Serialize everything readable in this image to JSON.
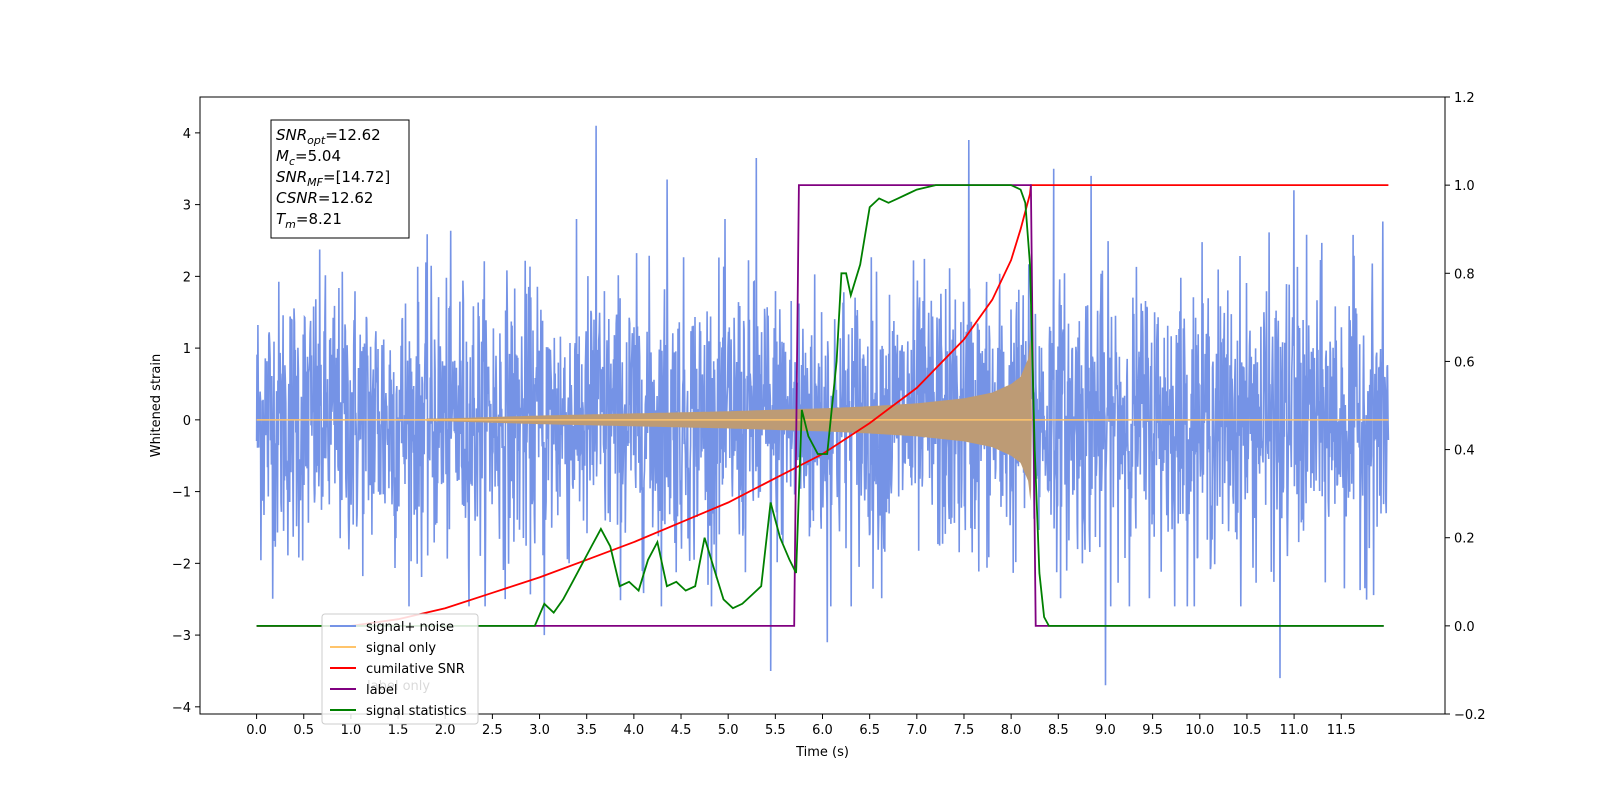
{
  "chart_data": {
    "type": "line",
    "xlabel": "Time (s)",
    "ylabel_left": "Whitened strain",
    "ylabel_right": "",
    "xlim": [
      -0.6,
      12.6
    ],
    "ylim_left": [
      -4.1,
      4.5
    ],
    "ylim_right": [
      -0.2,
      1.2
    ],
    "x_ticks": [
      "0.0",
      "0.5",
      "1.0",
      "1.5",
      "2.0",
      "2.5",
      "3.0",
      "3.5",
      "4.0",
      "4.5",
      "5.0",
      "5.5",
      "6.0",
      "6.5",
      "7.0",
      "7.5",
      "8.0",
      "8.5",
      "9.0",
      "9.5",
      "10.0",
      "10.5",
      "11.0",
      "11.5"
    ],
    "y_ticks_left": [
      "−4",
      "−3",
      "−2",
      "−1",
      "0",
      "1",
      "2",
      "3",
      "4"
    ],
    "y_ticks_right": [
      "−0.2",
      "0.0",
      "0.2",
      "0.4",
      "0.6",
      "0.8",
      "1.0",
      "1.2"
    ],
    "grid": false,
    "legend_position": "lower-left",
    "legend": [
      {
        "name": "signal+ noise",
        "color": "#7593e6"
      },
      {
        "name": "signal only",
        "color": "#ffc46b"
      },
      {
        "name": "cumilative SNR",
        "color": "#ff0000"
      },
      {
        "name": "label",
        "color": "#800080"
      },
      {
        "name": "signal statistics",
        "color": "#008000"
      }
    ],
    "hidden_legend_text": "label only",
    "stats_box": [
      {
        "main": "SNR",
        "sub": "opt",
        "value": "=12.62"
      },
      {
        "main": "M",
        "sub": "c",
        "value": "=5.04"
      },
      {
        "main": "SNR",
        "sub": "MF",
        "value": "=[14.72]"
      },
      {
        "main": "CSNR",
        "sub": "",
        "value": "=12.62"
      },
      {
        "main": "T",
        "sub": "m",
        "value": "=8.21"
      }
    ],
    "series": [
      {
        "name": "signal+ noise",
        "axis": "left",
        "color": "#7593e6",
        "x_range": [
          0.0,
          12.0
        ],
        "noise_envelope": [
          -2.0,
          2.1
        ],
        "spikes": [
          {
            "x": 3.6,
            "y": 4.1
          },
          {
            "x": 3.05,
            "y": -3.0
          },
          {
            "x": 5.45,
            "y": -3.5
          },
          {
            "x": 7.55,
            "y": 3.9
          },
          {
            "x": 8.85,
            "y": 3.4
          },
          {
            "x": 9.0,
            "y": -3.7
          },
          {
            "x": 10.85,
            "y": -3.6
          },
          {
            "x": 4.35,
            "y": 3.35
          },
          {
            "x": 5.3,
            "y": 3.65
          },
          {
            "x": 8.45,
            "y": 3.5
          },
          {
            "x": 6.05,
            "y": -3.1
          },
          {
            "x": 11.0,
            "y": 3.2
          }
        ]
      },
      {
        "name": "signal only",
        "axis": "left",
        "color": "#ffc46b",
        "fill_color": "#bd9b75",
        "envelope": {
          "x": [
            0.0,
            2.0,
            3.0,
            4.0,
            5.0,
            5.7,
            6.0,
            6.5,
            7.0,
            7.5,
            7.8,
            8.0,
            8.1,
            8.18,
            8.21,
            8.22,
            12.0
          ],
          "amp": [
            0.0,
            0.02,
            0.06,
            0.09,
            0.12,
            0.15,
            0.16,
            0.19,
            0.23,
            0.3,
            0.38,
            0.5,
            0.6,
            0.85,
            1.2,
            0.0,
            0.0
          ]
        }
      },
      {
        "name": "cumilative SNR",
        "axis": "right",
        "color": "#ff0000",
        "x": [
          0.0,
          1.0,
          1.5,
          2.0,
          2.5,
          3.0,
          3.5,
          4.0,
          4.5,
          5.0,
          5.5,
          6.0,
          6.5,
          7.0,
          7.5,
          7.8,
          8.0,
          8.1,
          8.2,
          8.21,
          12.0
        ],
        "y": [
          0.0,
          0.0,
          0.015,
          0.04,
          0.075,
          0.11,
          0.15,
          0.19,
          0.235,
          0.28,
          0.335,
          0.39,
          0.46,
          0.54,
          0.65,
          0.74,
          0.83,
          0.9,
          0.98,
          1.0,
          1.0
        ]
      },
      {
        "name": "label",
        "axis": "right",
        "color": "#800080",
        "x": [
          0.0,
          5.7,
          5.75,
          8.21,
          8.26,
          11.95
        ],
        "y": [
          0.0,
          0.0,
          1.0,
          1.0,
          0.0,
          0.0
        ]
      },
      {
        "name": "signal statistics",
        "axis": "right",
        "color": "#008000",
        "x": [
          0.0,
          2.5,
          2.95,
          3.05,
          3.15,
          3.25,
          3.35,
          3.45,
          3.55,
          3.65,
          3.75,
          3.85,
          3.95,
          4.05,
          4.15,
          4.25,
          4.35,
          4.45,
          4.55,
          4.65,
          4.75,
          4.85,
          4.95,
          5.05,
          5.15,
          5.25,
          5.35,
          5.45,
          5.55,
          5.65,
          5.72,
          5.78,
          5.85,
          5.95,
          6.05,
          6.15,
          6.2,
          6.25,
          6.3,
          6.4,
          6.5,
          6.6,
          6.7,
          6.8,
          6.9,
          7.0,
          7.2,
          7.5,
          8.0,
          8.1,
          8.15,
          8.2,
          8.25,
          8.3,
          8.35,
          8.4,
          8.5,
          11.95
        ],
        "y": [
          0.0,
          0.0,
          0.0,
          0.05,
          0.03,
          0.06,
          0.1,
          0.14,
          0.18,
          0.22,
          0.18,
          0.09,
          0.1,
          0.08,
          0.15,
          0.19,
          0.09,
          0.1,
          0.08,
          0.09,
          0.2,
          0.13,
          0.06,
          0.04,
          0.05,
          0.07,
          0.09,
          0.28,
          0.2,
          0.15,
          0.12,
          0.49,
          0.43,
          0.39,
          0.39,
          0.6,
          0.8,
          0.8,
          0.75,
          0.82,
          0.95,
          0.97,
          0.96,
          0.97,
          0.98,
          0.99,
          1.0,
          1.0,
          1.0,
          0.99,
          0.96,
          0.82,
          0.4,
          0.12,
          0.02,
          0.0,
          0.0,
          0.0
        ]
      }
    ]
  }
}
